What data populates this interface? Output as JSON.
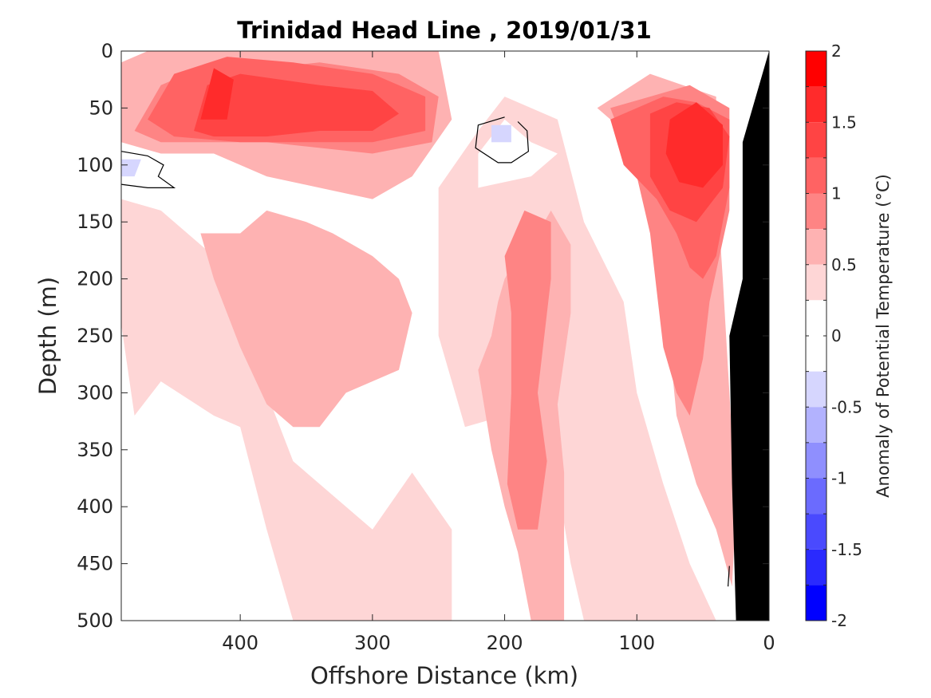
{
  "chart_data": {
    "type": "heatmap",
    "title": "Trinidad Head Line , 2019/01/31",
    "xlabel": "Offshore Distance (km)",
    "ylabel": "Depth (m)",
    "xlim": [
      490,
      0
    ],
    "ylim": [
      0,
      500
    ],
    "x_reversed": true,
    "y_reversed": true,
    "xticks": [
      400,
      300,
      200,
      100,
      0
    ],
    "yticks": [
      0,
      50,
      100,
      150,
      200,
      250,
      300,
      350,
      400,
      450,
      500
    ],
    "colorbar": {
      "label": "Anomaly of Potential Temperature (°C)",
      "range": [
        -2,
        2
      ],
      "ticks": [
        2,
        1.5,
        1,
        0.5,
        0,
        -0.5,
        -1,
        -1.5,
        -2
      ],
      "tick_labels": [
        "2",
        "1.5",
        "1",
        "0.5",
        "0",
        "-0.5",
        "-1",
        "-1.5",
        "-2"
      ],
      "levels": [
        {
          "from": 1.75,
          "to": 2.0,
          "color": "#ff0000"
        },
        {
          "from": 1.5,
          "to": 1.75,
          "color": "#ff2b2b"
        },
        {
          "from": 1.25,
          "to": 1.5,
          "color": "#ff4444"
        },
        {
          "from": 1.0,
          "to": 1.25,
          "color": "#ff6363"
        },
        {
          "from": 0.75,
          "to": 1.0,
          "color": "#fe8484"
        },
        {
          "from": 0.5,
          "to": 0.75,
          "color": "#feb2b2"
        },
        {
          "from": 0.25,
          "to": 0.5,
          "color": "#fed6d6"
        },
        {
          "from": 0.0,
          "to": 0.25,
          "color": "#ffffff"
        },
        {
          "from": -0.25,
          "to": 0.0,
          "color": "#ffffff"
        },
        {
          "from": -0.5,
          "to": -0.25,
          "color": "#d6d6fe"
        },
        {
          "from": -0.75,
          "to": -0.5,
          "color": "#b2b2fe"
        },
        {
          "from": -1.0,
          "to": -0.75,
          "color": "#8f8ffe"
        },
        {
          "from": -1.25,
          "to": -1.0,
          "color": "#6b6bfe"
        },
        {
          "from": -1.5,
          "to": -1.25,
          "color": "#4a4afe"
        },
        {
          "from": -1.75,
          "to": -1.5,
          "color": "#2a2afe"
        },
        {
          "from": -2.0,
          "to": -1.75,
          "color": "#0000ff"
        }
      ]
    },
    "regions": [
      {
        "level": 0.375,
        "points": [
          [
            490,
            240
          ],
          [
            480,
            320
          ],
          [
            460,
            290
          ],
          [
            420,
            320
          ],
          [
            400,
            330
          ],
          [
            380,
            420
          ],
          [
            360,
            500
          ],
          [
            240,
            500
          ],
          [
            240,
            420
          ],
          [
            270,
            370
          ],
          [
            300,
            420
          ],
          [
            360,
            360
          ],
          [
            380,
            300
          ],
          [
            400,
            200
          ],
          [
            460,
            140
          ],
          [
            490,
            130
          ]
        ]
      },
      {
        "level": 0.375,
        "points": [
          [
            250,
            120
          ],
          [
            220,
            70
          ],
          [
            200,
            40
          ],
          [
            160,
            60
          ],
          [
            140,
            150
          ],
          [
            110,
            220
          ],
          [
            100,
            300
          ],
          [
            80,
            380
          ],
          [
            60,
            450
          ],
          [
            40,
            500
          ],
          [
            140,
            500
          ],
          [
            150,
            450
          ],
          [
            160,
            380
          ],
          [
            180,
            330
          ],
          [
            200,
            320
          ],
          [
            230,
            330
          ],
          [
            250,
            250
          ]
        ]
      },
      {
        "level": 0.625,
        "points": [
          [
            430,
            160
          ],
          [
            400,
            160
          ],
          [
            380,
            140
          ],
          [
            350,
            150
          ],
          [
            330,
            160
          ],
          [
            300,
            180
          ],
          [
            280,
            200
          ],
          [
            270,
            230
          ],
          [
            280,
            280
          ],
          [
            320,
            300
          ],
          [
            340,
            330
          ],
          [
            360,
            330
          ],
          [
            380,
            310
          ],
          [
            400,
            260
          ],
          [
            420,
            200
          ]
        ]
      },
      {
        "level": 0.625,
        "points": [
          [
            220,
            280
          ],
          [
            210,
            250
          ],
          [
            205,
            220
          ],
          [
            200,
            200
          ],
          [
            190,
            180
          ],
          [
            175,
            160
          ],
          [
            165,
            140
          ],
          [
            150,
            170
          ],
          [
            150,
            230
          ],
          [
            160,
            310
          ],
          [
            155,
            370
          ],
          [
            155,
            500
          ],
          [
            180,
            500
          ],
          [
            190,
            440
          ],
          [
            200,
            400
          ],
          [
            210,
            350
          ]
        ]
      },
      {
        "level": 0.875,
        "points": [
          [
            185,
            140
          ],
          [
            165,
            150
          ],
          [
            165,
            200
          ],
          [
            170,
            250
          ],
          [
            175,
            300
          ],
          [
            168,
            360
          ],
          [
            175,
            420
          ],
          [
            190,
            420
          ],
          [
            198,
            380
          ],
          [
            195,
            300
          ],
          [
            195,
            230
          ],
          [
            200,
            180
          ]
        ]
      },
      {
        "level": 0.625,
        "points": [
          [
            130,
            50
          ],
          [
            110,
            70
          ],
          [
            80,
            140
          ],
          [
            70,
            200
          ],
          [
            75,
            260
          ],
          [
            70,
            320
          ],
          [
            55,
            380
          ],
          [
            40,
            420
          ],
          [
            28,
            470
          ],
          [
            25,
            400
          ],
          [
            30,
            300
          ],
          [
            35,
            200
          ],
          [
            40,
            110
          ],
          [
            40,
            40
          ],
          [
            90,
            20
          ]
        ]
      },
      {
        "level": 0.875,
        "points": [
          [
            120,
            50
          ],
          [
            90,
            40
          ],
          [
            60,
            30
          ],
          [
            30,
            50
          ],
          [
            30,
            140
          ],
          [
            45,
            220
          ],
          [
            50,
            270
          ],
          [
            60,
            320
          ],
          [
            70,
            300
          ],
          [
            80,
            260
          ],
          [
            85,
            210
          ],
          [
            90,
            160
          ],
          [
            100,
            110
          ]
        ]
      },
      {
        "level": 0.625,
        "points": [
          [
            490,
            10
          ],
          [
            470,
            0
          ],
          [
            250,
            0
          ],
          [
            240,
            60
          ],
          [
            270,
            110
          ],
          [
            300,
            130
          ],
          [
            340,
            120
          ],
          [
            380,
            110
          ],
          [
            420,
            90
          ],
          [
            460,
            90
          ],
          [
            490,
            80
          ]
        ]
      },
      {
        "level": 0.875,
        "points": [
          [
            480,
            70
          ],
          [
            460,
            30
          ],
          [
            420,
            10
          ],
          [
            380,
            15
          ],
          [
            340,
            10
          ],
          [
            280,
            20
          ],
          [
            250,
            40
          ],
          [
            255,
            80
          ],
          [
            300,
            90
          ],
          [
            340,
            85
          ],
          [
            380,
            80
          ],
          [
            420,
            80
          ],
          [
            460,
            80
          ]
        ]
      },
      {
        "level": 1.125,
        "points": [
          [
            470,
            60
          ],
          [
            450,
            20
          ],
          [
            410,
            5
          ],
          [
            360,
            10
          ],
          [
            300,
            20
          ],
          [
            260,
            40
          ],
          [
            260,
            70
          ],
          [
            300,
            80
          ],
          [
            350,
            80
          ],
          [
            400,
            80
          ],
          [
            450,
            75
          ]
        ]
      },
      {
        "level": 1.375,
        "points": [
          [
            435,
            70
          ],
          [
            425,
            30
          ],
          [
            400,
            20
          ],
          [
            340,
            30
          ],
          [
            300,
            35
          ],
          [
            280,
            55
          ],
          [
            300,
            70
          ],
          [
            340,
            70
          ],
          [
            380,
            75
          ],
          [
            420,
            75
          ]
        ]
      },
      {
        "level": 1.625,
        "points": [
          [
            430,
            60
          ],
          [
            420,
            15
          ],
          [
            405,
            25
          ],
          [
            410,
            60
          ]
        ]
      },
      {
        "level": 1.125,
        "points": [
          [
            120,
            60
          ],
          [
            80,
            40
          ],
          [
            55,
            45
          ],
          [
            30,
            60
          ],
          [
            30,
            120
          ],
          [
            40,
            180
          ],
          [
            50,
            200
          ],
          [
            60,
            190
          ],
          [
            70,
            160
          ],
          [
            85,
            130
          ],
          [
            110,
            100
          ]
        ]
      },
      {
        "level": 1.375,
        "points": [
          [
            90,
            55
          ],
          [
            70,
            45
          ],
          [
            45,
            50
          ],
          [
            30,
            75
          ],
          [
            35,
            120
          ],
          [
            55,
            150
          ],
          [
            75,
            140
          ],
          [
            90,
            110
          ]
        ]
      },
      {
        "level": 1.625,
        "points": [
          [
            75,
            60
          ],
          [
            55,
            45
          ],
          [
            35,
            65
          ],
          [
            35,
            100
          ],
          [
            50,
            120
          ],
          [
            68,
            115
          ],
          [
            78,
            90
          ]
        ]
      },
      {
        "level": 0.125,
        "points": [
          [
            220,
            90
          ],
          [
            200,
            60
          ],
          [
            180,
            80
          ],
          [
            160,
            90
          ],
          [
            180,
            110
          ],
          [
            220,
            120
          ]
        ]
      },
      {
        "level": 0.125,
        "points": [
          [
            490,
            85
          ],
          [
            450,
            100
          ],
          [
            430,
            130
          ],
          [
            460,
            140
          ],
          [
            490,
            125
          ]
        ]
      },
      {
        "level": -0.375,
        "points": [
          [
            490,
            95
          ],
          [
            475,
            95
          ],
          [
            480,
            110
          ],
          [
            490,
            110
          ]
        ]
      },
      {
        "level": -0.375,
        "points": [
          [
            210,
            65
          ],
          [
            195,
            65
          ],
          [
            195,
            80
          ],
          [
            210,
            80
          ]
        ]
      }
    ],
    "contours": [
      {
        "level": 0,
        "points": [
          [
            490,
            88
          ],
          [
            470,
            92
          ],
          [
            458,
            100
          ],
          [
            462,
            110
          ],
          [
            450,
            120
          ],
          [
            470,
            120
          ],
          [
            490,
            117
          ]
        ]
      },
      {
        "level": 0,
        "points": [
          [
            200,
            58
          ],
          [
            220,
            65
          ],
          [
            222,
            85
          ],
          [
            205,
            98
          ],
          [
            195,
            98
          ],
          [
            182,
            88
          ],
          [
            183,
            70
          ],
          [
            190,
            62
          ]
        ]
      },
      {
        "level": 0,
        "points": [
          [
            30,
            452
          ],
          [
            31,
            470
          ]
        ]
      }
    ],
    "bottom_topography": [
      [
        20,
        500
      ],
      [
        25,
        500
      ],
      [
        28,
        380
      ],
      [
        30,
        250
      ],
      [
        20,
        200
      ],
      [
        20,
        80
      ],
      [
        0,
        0
      ],
      [
        0,
        500
      ]
    ]
  }
}
